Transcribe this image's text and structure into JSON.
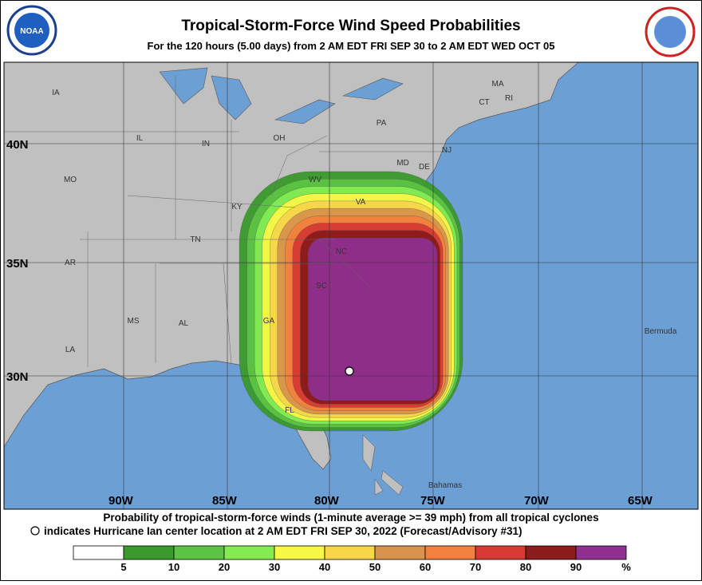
{
  "header": {
    "title": "Tropical-Storm-Force Wind Speed Probabilities",
    "subtitle": "For the 120 hours (5.00 days) from 2 AM EDT FRI SEP 30 to 2 AM EDT WED OCT 05"
  },
  "map": {
    "state_labels": [
      "IA",
      "IL",
      "IN",
      "OH",
      "PA",
      "MO",
      "KY",
      "WV",
      "VA",
      "TN",
      "NC",
      "AR",
      "SC",
      "MS",
      "AL",
      "GA",
      "LA",
      "FL",
      "NJ",
      "MD",
      "DE",
      "MA",
      "CT",
      "RI",
      "Bermuda",
      "Bahamas"
    ],
    "lon_labels": [
      "90W",
      "85W",
      "80W",
      "75W",
      "70W",
      "65W"
    ],
    "lat_labels": [
      "40N",
      "35N",
      "30N"
    ]
  },
  "footer": {
    "line1": "Probability of tropical-storm-force winds (1-minute average >= 39 mph) from all tropical cyclones",
    "line2": "indicates Hurricane Ian center location at 2 AM EDT FRI SEP 30, 2022 (Forecast/Advisory #31)"
  },
  "legend": {
    "colors": [
      "#ffffff",
      "#3a9a2c",
      "#5cc444",
      "#84ec52",
      "#f7f747",
      "#f7d64a",
      "#d8944c",
      "#f2813e",
      "#d63a32",
      "#8c1b1b",
      "#8f2f8f"
    ],
    "labels": [
      "5",
      "10",
      "20",
      "30",
      "40",
      "50",
      "60",
      "70",
      "80",
      "90",
      "%"
    ]
  }
}
